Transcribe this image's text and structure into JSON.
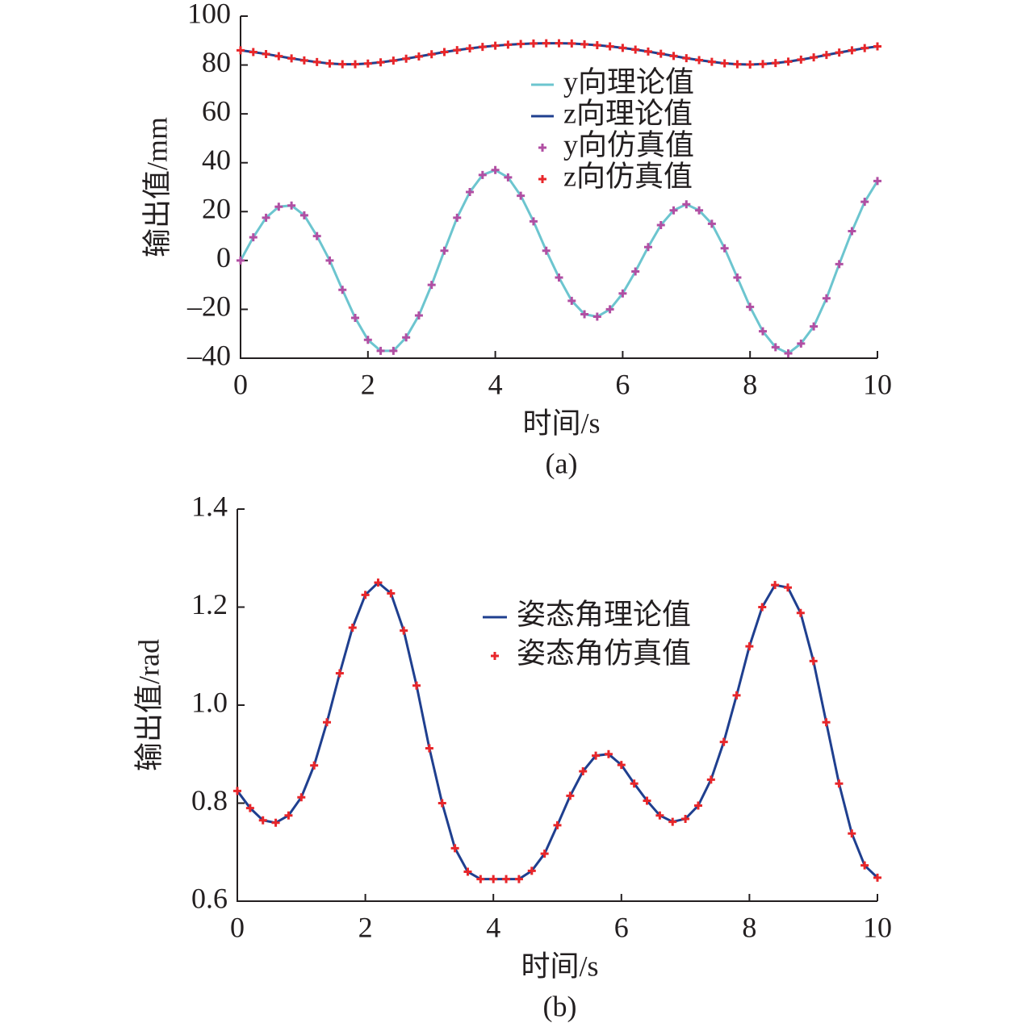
{
  "chart_data": [
    {
      "type": "line",
      "xlabel": "时间/s",
      "ylabel": "输出值/mm",
      "caption": "(a)",
      "xlim": [
        0,
        10
      ],
      "ylim": [
        -40,
        100
      ],
      "xticks": [
        0,
        2,
        4,
        6,
        8,
        10
      ],
      "yticks": [
        {
          "value": -40,
          "label": "–40"
        },
        {
          "value": -20,
          "label": "–20"
        },
        0,
        20,
        40,
        60,
        80,
        100
      ],
      "x": [
        0,
        0.2,
        0.4,
        0.6,
        0.8,
        1,
        1.2,
        1.4,
        1.6,
        1.8,
        2,
        2.2,
        2.4,
        2.6,
        2.8,
        3,
        3.2,
        3.4,
        3.6,
        3.8,
        4,
        4.2,
        4.4,
        4.6,
        4.8,
        5,
        5.2,
        5.4,
        5.6,
        5.8,
        6,
        6.2,
        6.4,
        6.6,
        6.8,
        7,
        7.2,
        7.4,
        7.6,
        7.8,
        8,
        8.2,
        8.4,
        8.6,
        8.8,
        9,
        9.2,
        9.4,
        9.6,
        9.8,
        10
      ],
      "series": [
        {
          "name": "y向理论值",
          "style": "line",
          "color": "#6cc5cf",
          "values": [
            0,
            9.5,
            17.5,
            22,
            22.5,
            18.5,
            10,
            0,
            -12,
            -23.5,
            -32.5,
            -37,
            -37,
            -31.5,
            -22.5,
            -10,
            4,
            17.5,
            28,
            35,
            37,
            34,
            26.5,
            16,
            4,
            -7,
            -16.5,
            -22,
            -23,
            -20,
            -13.5,
            -4.5,
            5.5,
            14.5,
            20.5,
            23,
            20.5,
            15,
            5,
            -7,
            -19,
            -29,
            -35.5,
            -38,
            -34,
            -27,
            -15.5,
            -1.5,
            12,
            24,
            32.5
          ]
        },
        {
          "name": "z向理论值",
          "style": "line",
          "color": "#1f3f8f",
          "values": [
            86,
            85.3,
            84.5,
            83.6,
            82.7,
            81.9,
            81.2,
            80.6,
            80.3,
            80.3,
            80.6,
            81.1,
            81.8,
            82.6,
            83.5,
            84.4,
            85.3,
            86.1,
            86.8,
            87.4,
            87.9,
            88.3,
            88.6,
            88.8,
            88.9,
            88.9,
            88.8,
            88.5,
            88.1,
            87.6,
            87,
            86.3,
            85.5,
            84.6,
            83.7,
            82.8,
            82,
            81.3,
            80.7,
            80.3,
            80.2,
            80.4,
            80.8,
            81.4,
            82.2,
            83.1,
            84.1,
            85.1,
            86,
            86.9,
            87.6
          ]
        },
        {
          "name": "y向仿真值",
          "style": "marker",
          "color": "#b14fa3",
          "values": [
            0,
            9.5,
            17.5,
            22,
            22.5,
            18.5,
            10,
            0,
            -12,
            -23.5,
            -32.5,
            -37,
            -37,
            -31.5,
            -22.5,
            -10,
            4,
            17.5,
            28,
            35,
            37,
            34,
            26.5,
            16,
            4,
            -7,
            -16.5,
            -22,
            -23,
            -20,
            -13.5,
            -4.5,
            5.5,
            14.5,
            20.5,
            23,
            20.5,
            15,
            5,
            -7,
            -19,
            -29,
            -35.5,
            -38,
            -34,
            -27,
            -15.5,
            -1.5,
            12,
            24,
            32.5
          ]
        },
        {
          "name": "z向仿真值",
          "style": "marker",
          "color": "#e8262a",
          "values": [
            86,
            85.3,
            84.5,
            83.6,
            82.7,
            81.9,
            81.2,
            80.6,
            80.3,
            80.3,
            80.6,
            81.1,
            81.8,
            82.6,
            83.5,
            84.4,
            85.3,
            86.1,
            86.8,
            87.4,
            87.9,
            88.3,
            88.6,
            88.8,
            88.9,
            88.9,
            88.8,
            88.5,
            88.1,
            87.6,
            87,
            86.3,
            85.5,
            84.6,
            83.7,
            82.8,
            82,
            81.3,
            80.7,
            80.3,
            80.2,
            80.4,
            80.8,
            81.4,
            82.2,
            83.1,
            84.1,
            85.1,
            86,
            86.9,
            87.6
          ]
        }
      ]
    },
    {
      "type": "line",
      "xlabel": "时间/s",
      "ylabel": "输出值/rad",
      "caption": "(b)",
      "xlim": [
        0,
        10
      ],
      "ylim": [
        0.6,
        1.4
      ],
      "xticks": [
        0,
        2,
        4,
        6,
        8,
        10
      ],
      "yticks": [
        {
          "value": 0.6,
          "label": "0.6"
        },
        {
          "value": 0.8,
          "label": "0.8"
        },
        {
          "value": 1,
          "label": "1.0"
        },
        {
          "value": 1.2,
          "label": "1.2"
        },
        {
          "value": 1.4,
          "label": "1.4"
        }
      ],
      "x": [
        0,
        0.2,
        0.4,
        0.6,
        0.8,
        1,
        1.2,
        1.4,
        1.6,
        1.8,
        2,
        2.2,
        2.4,
        2.6,
        2.8,
        3,
        3.2,
        3.4,
        3.6,
        3.8,
        4,
        4.2,
        4.4,
        4.6,
        4.8,
        5,
        5.2,
        5.4,
        5.6,
        5.8,
        6,
        6.2,
        6.4,
        6.6,
        6.8,
        7,
        7.2,
        7.4,
        7.6,
        7.8,
        8,
        8.2,
        8.4,
        8.6,
        8.8,
        9,
        9.2,
        9.4,
        9.6,
        9.8,
        10
      ],
      "series": [
        {
          "name": "姿态角理论值",
          "style": "line",
          "color": "#1f3f8f",
          "values": [
            0.825,
            0.79,
            0.765,
            0.76,
            0.775,
            0.812,
            0.877,
            0.965,
            1.065,
            1.158,
            1.225,
            1.25,
            1.228,
            1.152,
            1.04,
            0.912,
            0.8,
            0.708,
            0.66,
            0.645,
            0.645,
            0.645,
            0.645,
            0.662,
            0.697,
            0.755,
            0.815,
            0.865,
            0.897,
            0.9,
            0.878,
            0.84,
            0.805,
            0.775,
            0.762,
            0.768,
            0.795,
            0.848,
            0.925,
            1.02,
            1.12,
            1.2,
            1.245,
            1.24,
            1.188,
            1.09,
            0.965,
            0.84,
            0.738,
            0.673,
            0.648
          ]
        },
        {
          "name": "姿态角仿真值",
          "style": "marker",
          "color": "#e8262a",
          "values": [
            0.825,
            0.79,
            0.765,
            0.76,
            0.775,
            0.812,
            0.877,
            0.965,
            1.065,
            1.158,
            1.225,
            1.25,
            1.228,
            1.152,
            1.04,
            0.912,
            0.8,
            0.708,
            0.66,
            0.645,
            0.645,
            0.645,
            0.645,
            0.662,
            0.697,
            0.755,
            0.815,
            0.865,
            0.897,
            0.9,
            0.878,
            0.84,
            0.805,
            0.775,
            0.762,
            0.768,
            0.795,
            0.848,
            0.925,
            1.02,
            1.12,
            1.2,
            1.245,
            1.24,
            1.188,
            1.09,
            0.965,
            0.84,
            0.738,
            0.673,
            0.648
          ]
        }
      ]
    }
  ]
}
